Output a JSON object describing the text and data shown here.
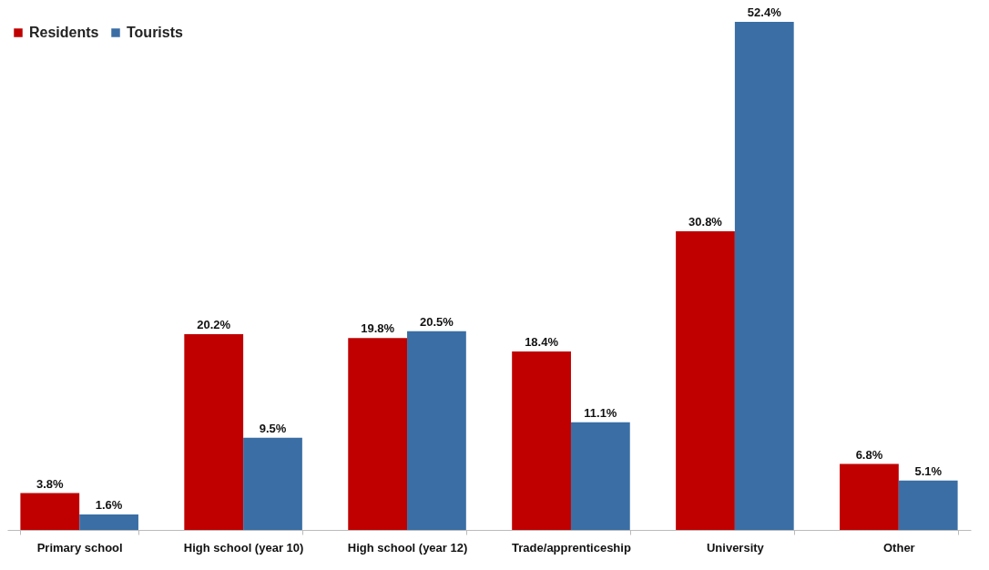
{
  "chart_data": {
    "type": "bar",
    "categories": [
      "Primary school",
      "High school (year 10)",
      "High school (year 12)",
      "Trade/apprenticeship",
      "University",
      "Other"
    ],
    "series": [
      {
        "name": "Residents",
        "color": "#c00000",
        "values": [
          3.8,
          20.2,
          19.8,
          18.4,
          30.8,
          6.8
        ],
        "value_labels": [
          "3.8%",
          "20.2%",
          "19.8%",
          "18.4%",
          "30.8%",
          "6.8%"
        ]
      },
      {
        "name": "Tourists",
        "color": "#3a6ea5",
        "values": [
          1.6,
          9.5,
          20.5,
          11.1,
          52.4,
          5.1
        ],
        "value_labels": [
          "1.6%",
          "9.5%",
          "20.5%",
          "11.1%",
          "52.4%",
          "5.1%"
        ]
      }
    ],
    "legend": "top left",
    "grid": false
  }
}
